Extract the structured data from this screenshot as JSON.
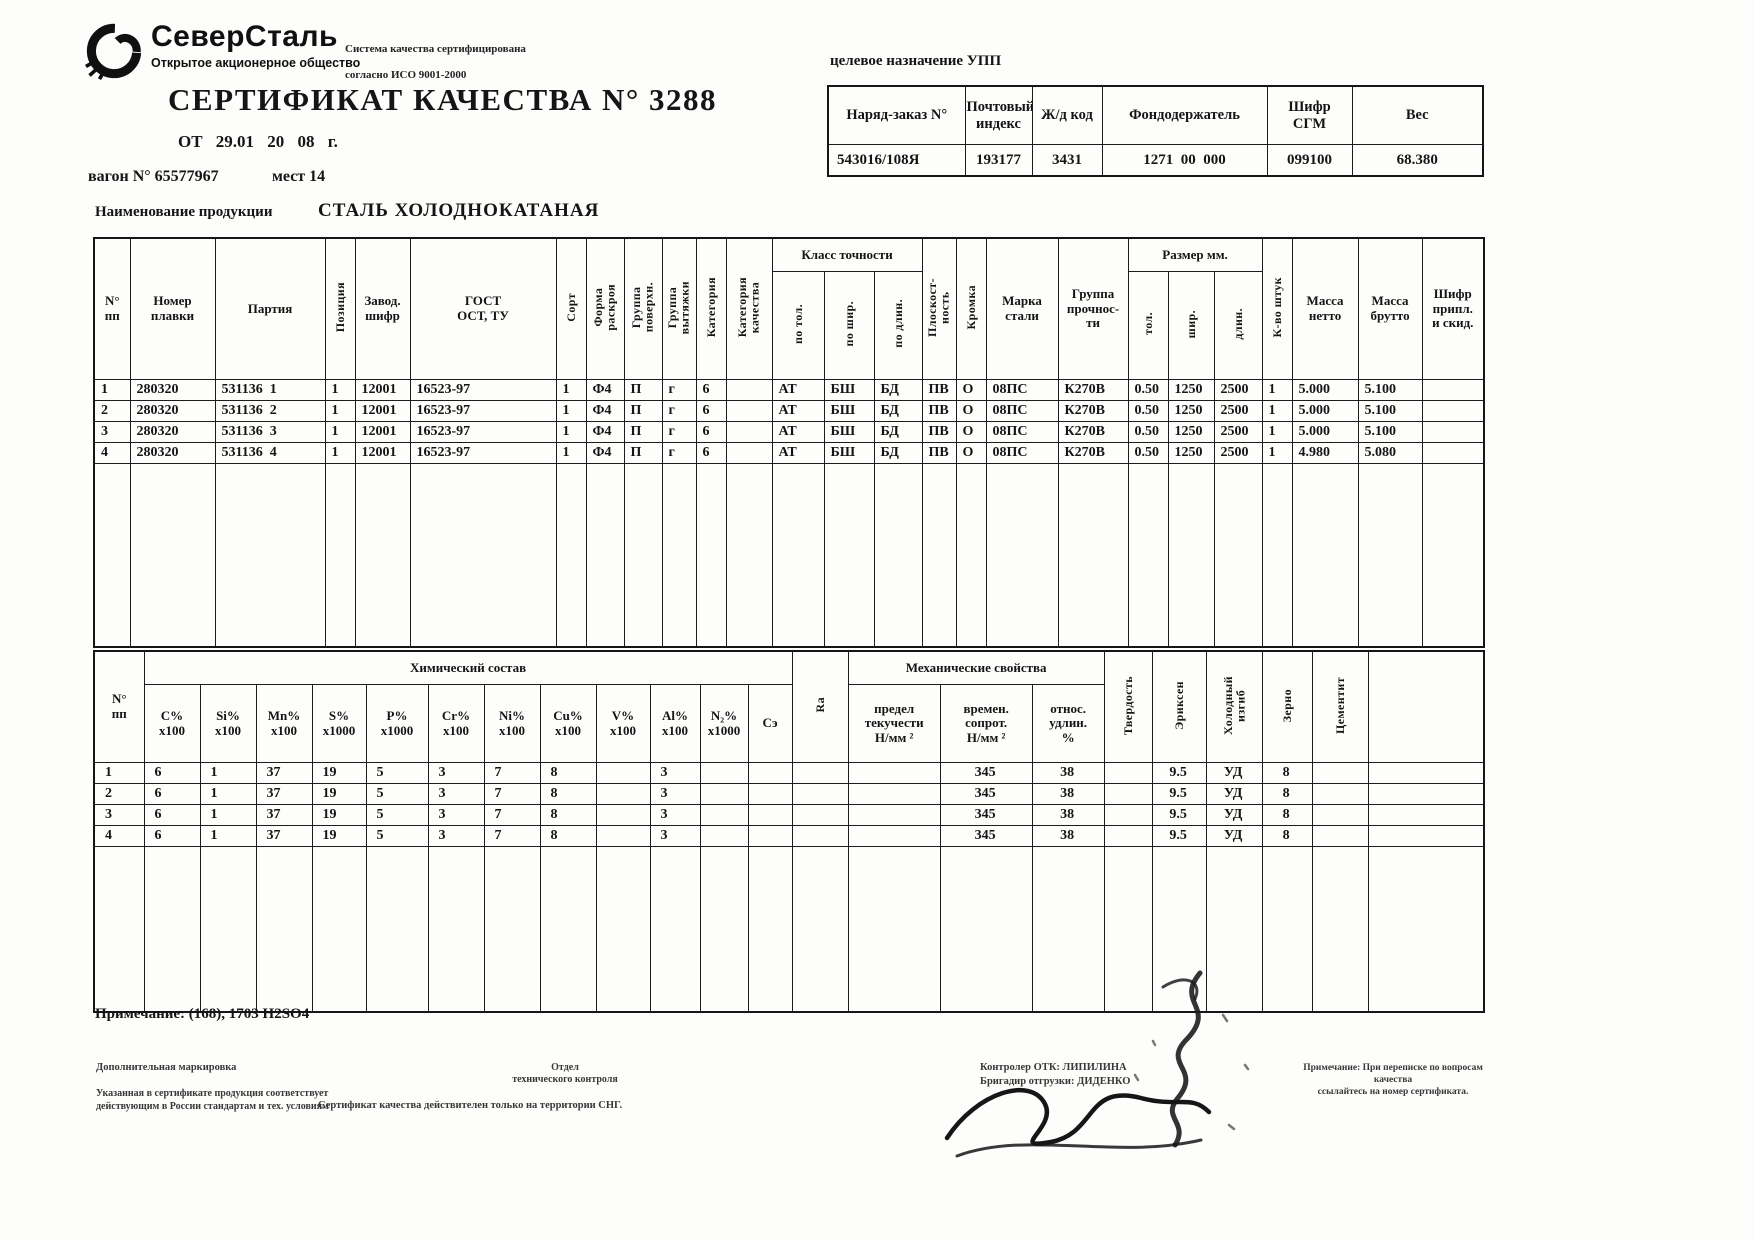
{
  "header": {
    "logo_name": "СеверСталь",
    "logo_sub": "Открытое акционерное общество",
    "iso_line1": "Система качества сертифицирована",
    "iso_line2": "согласно ИСО 9001-2000",
    "title": "СЕРТИФИКАТ КАЧЕСТВА N° 3288",
    "date_line": "ОТ  29.01   20  08 г.",
    "wagon": "вагон N° 65577967",
    "places": "мест 14",
    "purpose_label": "целевое назначение УПП"
  },
  "order_table": {
    "headers": [
      "Наряд-заказ N°",
      "Почтовый\nиндекс",
      "Ж/д код",
      "Фондодержатель",
      "Шифр\nСГМ",
      "Вес"
    ],
    "values": [
      "543016/108Я",
      "193177",
      "3431",
      "1271  00  000",
      "099100",
      "68.380"
    ]
  },
  "product": {
    "label": "Наименование продукции",
    "value": "СТАЛЬ ХОЛОДНОКАТАНАЯ"
  },
  "main_table": {
    "headers": {
      "no": "N°\nпп",
      "melt": "Номер\nплавки",
      "batch": "Партия",
      "position": "Позиция",
      "plant_code": "Завод.\nшифр",
      "gost": "ГОСТ\nОСТ, ТУ",
      "sort": "Сорт",
      "cut_form": "Форма\nраскроя",
      "surface_group": "Группа\nповерхн.",
      "draw_group": "Группа\nвытяжки",
      "category": "Категория",
      "quality_category": "Категория\nкачества",
      "accuracy_class": "Класс точности",
      "by_thickness": "по тол.",
      "by_width": "по шир.",
      "by_length": "по длин.",
      "flatness": "Плоскост-\nность",
      "edge": "Кромка",
      "steel_grade": "Марка\nстали",
      "strength_group": "Группа\nпрочнос-\nти",
      "size_mm": "Размер мм.",
      "thickness": "тол.",
      "width": "шир.",
      "length": "длин.",
      "qty": "К-во штук",
      "net_mass": "Масса\nнетто",
      "gross_mass": "Масса\nбрутто",
      "cipher": "Шифр\nприпл.\nи скид."
    },
    "rows": [
      [
        "1",
        "280320",
        "531136  1",
        "1",
        "12001",
        "16523-97",
        "1",
        "Ф4",
        "П",
        "г",
        "6",
        "",
        "АТ",
        "БШ",
        "БД",
        "ПВ",
        "О",
        "08ПС",
        "К270В",
        "0.50",
        "1250",
        "2500",
        "1",
        "5.000",
        "5.100",
        ""
      ],
      [
        "2",
        "280320",
        "531136  2",
        "1",
        "12001",
        "16523-97",
        "1",
        "Ф4",
        "П",
        "г",
        "6",
        "",
        "АТ",
        "БШ",
        "БД",
        "ПВ",
        "О",
        "08ПС",
        "К270В",
        "0.50",
        "1250",
        "2500",
        "1",
        "5.000",
        "5.100",
        ""
      ],
      [
        "3",
        "280320",
        "531136  3",
        "1",
        "12001",
        "16523-97",
        "1",
        "Ф4",
        "П",
        "г",
        "6",
        "",
        "АТ",
        "БШ",
        "БД",
        "ПВ",
        "О",
        "08ПС",
        "К270В",
        "0.50",
        "1250",
        "2500",
        "1",
        "5.000",
        "5.100",
        ""
      ],
      [
        "4",
        "280320",
        "531136  4",
        "1",
        "12001",
        "16523-97",
        "1",
        "Ф4",
        "П",
        "г",
        "6",
        "",
        "АТ",
        "БШ",
        "БД",
        "ПВ",
        "О",
        "08ПС",
        "К270В",
        "0.50",
        "1250",
        "2500",
        "1",
        "4.980",
        "5.080",
        ""
      ]
    ]
  },
  "chem_table": {
    "headers": {
      "no": "N°\nпп",
      "chem_group": "Химический состав",
      "c": "C%\nх100",
      "si": "Si%\nх100",
      "mn": "Mn%\nх100",
      "s": "S%\nх1000",
      "p": "P%\nх1000",
      "cr": "Cr%\nх100",
      "ni": "Ni%\nх100",
      "cu": "Cu%\nх100",
      "v": "V%\nх100",
      "al": "Al%\nх100",
      "n2": "N₂%\nх1000",
      "se": "Сэ",
      "ra": "Ra",
      "mech_group": "Механические свойства",
      "yield_strength": "предел\nтекучести\nН/мм ²",
      "tensile": "времен.\nсопрот.\nН/мм ²",
      "elongation": "относ.\nудлин.\n%",
      "hardness": "Твердость",
      "erichsen": "Эриксен",
      "cold_bend": "Холодный\nизгиб",
      "grain": "Зерно",
      "cementite": "Цементит"
    },
    "rows": [
      [
        "1",
        "6",
        "1",
        "37",
        "19",
        "5",
        "3",
        "7",
        "8",
        "",
        "3",
        "",
        "",
        "",
        "",
        "345",
        "38",
        "",
        "9.5",
        "УД",
        "8",
        "",
        ""
      ],
      [
        "2",
        "6",
        "1",
        "37",
        "19",
        "5",
        "3",
        "7",
        "8",
        "",
        "3",
        "",
        "",
        "",
        "",
        "345",
        "38",
        "",
        "9.5",
        "УД",
        "8",
        "",
        ""
      ],
      [
        "3",
        "6",
        "1",
        "37",
        "19",
        "5",
        "3",
        "7",
        "8",
        "",
        "3",
        "",
        "",
        "",
        "",
        "345",
        "38",
        "",
        "9.5",
        "УД",
        "8",
        "",
        ""
      ],
      [
        "4",
        "6",
        "1",
        "37",
        "19",
        "5",
        "3",
        "7",
        "8",
        "",
        "3",
        "",
        "",
        "",
        "",
        "345",
        "38",
        "",
        "9.5",
        "УД",
        "8",
        "",
        ""
      ]
    ]
  },
  "notes": {
    "bottom_note": "Примечание: (168), 1703 H2SO4"
  },
  "footer": {
    "additional_marking": "Дополнительная маркировка",
    "compliance": "Указанная в сертификате продукция соответствует\nдействующим в России стандартам и тех. условиям",
    "validity": "Сертификат качества действителен только на территории СНГ.",
    "otk_dept": "Отдел\nтехнического контроля",
    "controller": "Контролер ОТК: ЛИПИЛИНА",
    "foreman": "Бригадир отгрузки: ДИДЕНКО",
    "right_note": "Примечание: При переписке по вопросам качества\nссылайтесь на номер сертификата."
  }
}
